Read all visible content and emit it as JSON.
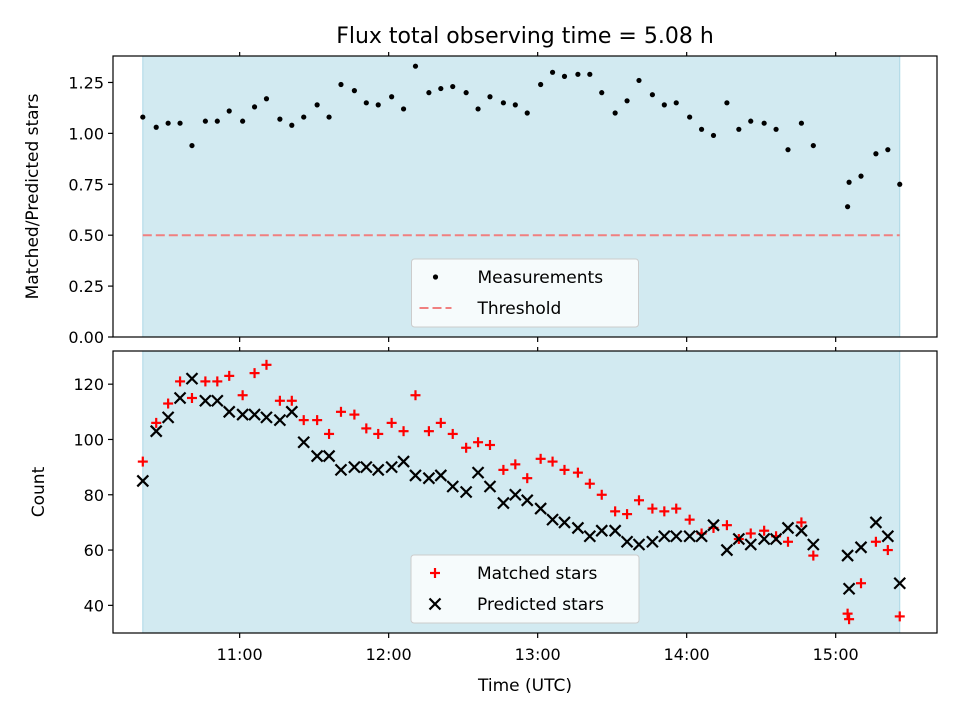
{
  "chart_data": {
    "title": "Flux total observing time = 5.08 h",
    "xlabel": "Time (UTC)",
    "x_unit": "hours UTC",
    "xlim": [
      10.15,
      15.68
    ],
    "xticks": [
      11,
      12,
      13,
      14,
      15
    ],
    "xtick_labels": [
      "11:00",
      "12:00",
      "13:00",
      "14:00",
      "15:00"
    ],
    "shaded_span": {
      "x": [
        10.35,
        15.43
      ],
      "color": "#add8e6"
    },
    "panels": [
      {
        "type": "scatter",
        "ylabel": "Matched/Predicted stars",
        "ylim": [
          0,
          1.38
        ],
        "yticks": [
          0,
          0.25,
          0.5,
          0.75,
          1.0,
          1.25
        ],
        "ytick_labels": [
          "0.00",
          "0.25",
          "0.50",
          "0.75",
          "1.00",
          "1.25"
        ],
        "legend_placement": "lower center",
        "series": [
          {
            "name": "Measurements",
            "marker": "dot",
            "color": "#000000",
            "points": [
              [
                10.35,
                1.08
              ],
              [
                10.44,
                1.03
              ],
              [
                10.52,
                1.05
              ],
              [
                10.6,
                1.05
              ],
              [
                10.68,
                0.94
              ],
              [
                10.77,
                1.06
              ],
              [
                10.85,
                1.06
              ],
              [
                10.93,
                1.11
              ],
              [
                11.02,
                1.06
              ],
              [
                11.1,
                1.13
              ],
              [
                11.18,
                1.17
              ],
              [
                11.27,
                1.07
              ],
              [
                11.35,
                1.04
              ],
              [
                11.43,
                1.08
              ],
              [
                11.52,
                1.14
              ],
              [
                11.6,
                1.08
              ],
              [
                11.68,
                1.24
              ],
              [
                11.77,
                1.21
              ],
              [
                11.85,
                1.15
              ],
              [
                11.93,
                1.14
              ],
              [
                12.02,
                1.18
              ],
              [
                12.1,
                1.12
              ],
              [
                12.18,
                1.33
              ],
              [
                12.27,
                1.2
              ],
              [
                12.35,
                1.22
              ],
              [
                12.43,
                1.23
              ],
              [
                12.52,
                1.2
              ],
              [
                12.6,
                1.12
              ],
              [
                12.68,
                1.18
              ],
              [
                12.77,
                1.15
              ],
              [
                12.85,
                1.14
              ],
              [
                12.93,
                1.1
              ],
              [
                13.02,
                1.24
              ],
              [
                13.1,
                1.3
              ],
              [
                13.18,
                1.28
              ],
              [
                13.27,
                1.29
              ],
              [
                13.35,
                1.29
              ],
              [
                13.43,
                1.2
              ],
              [
                13.52,
                1.1
              ],
              [
                13.6,
                1.16
              ],
              [
                13.68,
                1.26
              ],
              [
                13.77,
                1.19
              ],
              [
                13.85,
                1.14
              ],
              [
                13.93,
                1.15
              ],
              [
                14.02,
                1.08
              ],
              [
                14.1,
                1.02
              ],
              [
                14.18,
                0.99
              ],
              [
                14.27,
                1.15
              ],
              [
                14.35,
                1.02
              ],
              [
                14.43,
                1.06
              ],
              [
                14.52,
                1.05
              ],
              [
                14.6,
                1.02
              ],
              [
                14.68,
                0.92
              ],
              [
                14.77,
                1.05
              ],
              [
                14.85,
                0.94
              ],
              [
                15.08,
                0.64
              ],
              [
                15.09,
                0.76
              ],
              [
                15.17,
                0.79
              ],
              [
                15.27,
                0.9
              ],
              [
                15.35,
                0.92
              ],
              [
                15.43,
                0.75
              ]
            ]
          },
          {
            "name": "Threshold",
            "kind": "hline",
            "style": "dashed",
            "color": "#f08080",
            "y": 0.5,
            "x": [
              10.35,
              15.43
            ]
          }
        ]
      },
      {
        "type": "scatter",
        "ylabel": "Count",
        "ylim": [
          30,
          132
        ],
        "yticks": [
          40,
          60,
          80,
          100,
          120
        ],
        "ytick_labels": [
          "40",
          "60",
          "80",
          "100",
          "120"
        ],
        "legend_placement": "lower center",
        "series": [
          {
            "name": "Matched stars",
            "marker": "plus",
            "color": "#ff0000",
            "points": [
              [
                10.35,
                92
              ],
              [
                10.44,
                106
              ],
              [
                10.52,
                113
              ],
              [
                10.6,
                121
              ],
              [
                10.68,
                115
              ],
              [
                10.77,
                121
              ],
              [
                10.85,
                121
              ],
              [
                10.93,
                123
              ],
              [
                11.02,
                116
              ],
              [
                11.1,
                124
              ],
              [
                11.18,
                127
              ],
              [
                11.27,
                114
              ],
              [
                11.35,
                114
              ],
              [
                11.43,
                107
              ],
              [
                11.52,
                107
              ],
              [
                11.6,
                102
              ],
              [
                11.68,
                110
              ],
              [
                11.77,
                109
              ],
              [
                11.85,
                104
              ],
              [
                11.93,
                102
              ],
              [
                12.02,
                106
              ],
              [
                12.1,
                103
              ],
              [
                12.18,
                116
              ],
              [
                12.27,
                103
              ],
              [
                12.35,
                106
              ],
              [
                12.43,
                102
              ],
              [
                12.52,
                97
              ],
              [
                12.6,
                99
              ],
              [
                12.68,
                98
              ],
              [
                12.77,
                89
              ],
              [
                12.85,
                91
              ],
              [
                12.93,
                86
              ],
              [
                13.02,
                93
              ],
              [
                13.1,
                92
              ],
              [
                13.18,
                89
              ],
              [
                13.27,
                88
              ],
              [
                13.35,
                84
              ],
              [
                13.43,
                80
              ],
              [
                13.52,
                74
              ],
              [
                13.6,
                73
              ],
              [
                13.68,
                78
              ],
              [
                13.77,
                75
              ],
              [
                13.85,
                74
              ],
              [
                13.93,
                75
              ],
              [
                14.02,
                71
              ],
              [
                14.1,
                66
              ],
              [
                14.18,
                68
              ],
              [
                14.27,
                69
              ],
              [
                14.35,
                64
              ],
              [
                14.43,
                66
              ],
              [
                14.52,
                67
              ],
              [
                14.6,
                65
              ],
              [
                14.68,
                63
              ],
              [
                14.77,
                70
              ],
              [
                14.85,
                58
              ],
              [
                15.08,
                37
              ],
              [
                15.09,
                35
              ],
              [
                15.17,
                48
              ],
              [
                15.27,
                63
              ],
              [
                15.35,
                60
              ],
              [
                15.43,
                36
              ]
            ]
          },
          {
            "name": "Predicted stars",
            "marker": "x",
            "color": "#000000",
            "points": [
              [
                10.35,
                85
              ],
              [
                10.44,
                103
              ],
              [
                10.52,
                108
              ],
              [
                10.6,
                115
              ],
              [
                10.68,
                122
              ],
              [
                10.77,
                114
              ],
              [
                10.85,
                114
              ],
              [
                10.93,
                110
              ],
              [
                11.02,
                109
              ],
              [
                11.1,
                109
              ],
              [
                11.18,
                108
              ],
              [
                11.27,
                107
              ],
              [
                11.35,
                110
              ],
              [
                11.43,
                99
              ],
              [
                11.52,
                94
              ],
              [
                11.6,
                94
              ],
              [
                11.68,
                89
              ],
              [
                11.77,
                90
              ],
              [
                11.85,
                90
              ],
              [
                11.93,
                89
              ],
              [
                12.02,
                90
              ],
              [
                12.1,
                92
              ],
              [
                12.18,
                87
              ],
              [
                12.27,
                86
              ],
              [
                12.35,
                87
              ],
              [
                12.43,
                83
              ],
              [
                12.52,
                81
              ],
              [
                12.6,
                88
              ],
              [
                12.68,
                83
              ],
              [
                12.77,
                77
              ],
              [
                12.85,
                80
              ],
              [
                12.93,
                78
              ],
              [
                13.02,
                75
              ],
              [
                13.1,
                71
              ],
              [
                13.18,
                70
              ],
              [
                13.27,
                68
              ],
              [
                13.35,
                65
              ],
              [
                13.43,
                67
              ],
              [
                13.52,
                67
              ],
              [
                13.6,
                63
              ],
              [
                13.68,
                62
              ],
              [
                13.77,
                63
              ],
              [
                13.85,
                65
              ],
              [
                13.93,
                65
              ],
              [
                14.02,
                65
              ],
              [
                14.1,
                65
              ],
              [
                14.18,
                69
              ],
              [
                14.27,
                60
              ],
              [
                14.35,
                64
              ],
              [
                14.43,
                62
              ],
              [
                14.52,
                64
              ],
              [
                14.6,
                64
              ],
              [
                14.68,
                68
              ],
              [
                14.77,
                67
              ],
              [
                14.85,
                62
              ],
              [
                15.08,
                58
              ],
              [
                15.09,
                46
              ],
              [
                15.17,
                61
              ],
              [
                15.27,
                70
              ],
              [
                15.35,
                65
              ],
              [
                15.43,
                48
              ]
            ]
          }
        ]
      }
    ]
  }
}
